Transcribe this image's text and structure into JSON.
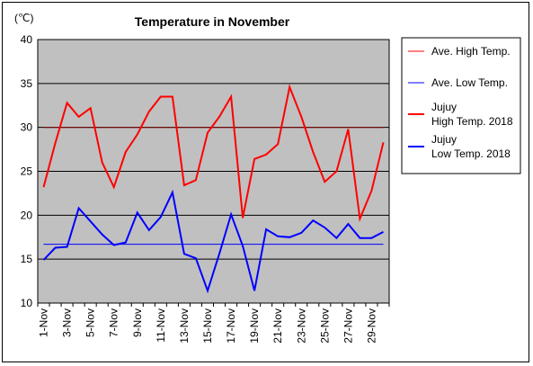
{
  "chart_data": {
    "type": "line",
    "title": "Temperature in November",
    "unit_label": "(℃)",
    "xlabel": "",
    "ylabel": "",
    "ylim": [
      10,
      40
    ],
    "yticks": [
      10,
      15,
      20,
      25,
      30,
      35,
      40
    ],
    "grid": true,
    "legend_position": "right",
    "plot_background": "#c0c0c0",
    "categories": [
      "1-Nov",
      "2-Nov",
      "3-Nov",
      "4-Nov",
      "5-Nov",
      "6-Nov",
      "7-Nov",
      "8-Nov",
      "9-Nov",
      "10-Nov",
      "11-Nov",
      "12-Nov",
      "13-Nov",
      "14-Nov",
      "15-Nov",
      "16-Nov",
      "17-Nov",
      "18-Nov",
      "19-Nov",
      "20-Nov",
      "21-Nov",
      "22-Nov",
      "23-Nov",
      "24-Nov",
      "25-Nov",
      "26-Nov",
      "27-Nov",
      "28-Nov",
      "29-Nov",
      "30-Nov"
    ],
    "tick_labels": [
      "1-Nov",
      "3-Nov",
      "5-Nov",
      "7-Nov",
      "9-Nov",
      "11-Nov",
      "13-Nov",
      "15-Nov",
      "17-Nov",
      "19-Nov",
      "21-Nov",
      "23-Nov",
      "25-Nov",
      "27-Nov",
      "29-Nov"
    ],
    "series": [
      {
        "name": "Ave. High Temp.",
        "color": "#ff0000",
        "line_color_on_plot": "#800000",
        "width": 1,
        "values": [
          30,
          30,
          30,
          30,
          30,
          30,
          30,
          30,
          30,
          30,
          30,
          30,
          30,
          30,
          30,
          30,
          30,
          30,
          30,
          30,
          30,
          30,
          30,
          30,
          30,
          30,
          30,
          30,
          30,
          30
        ]
      },
      {
        "name": "Ave. Low Temp.",
        "color": "#0000ff",
        "width": 1,
        "values": [
          16.7,
          16.7,
          16.7,
          16.7,
          16.7,
          16.7,
          16.7,
          16.7,
          16.7,
          16.7,
          16.7,
          16.7,
          16.7,
          16.7,
          16.7,
          16.7,
          16.7,
          16.7,
          16.7,
          16.7,
          16.7,
          16.7,
          16.7,
          16.7,
          16.7,
          16.7,
          16.7,
          16.7,
          16.7,
          16.7
        ]
      },
      {
        "name_lines": [
          "Jujuy",
          "High Temp. 2018"
        ],
        "color": "#ff0000",
        "width": 2,
        "values": [
          23.2,
          28.2,
          32.8,
          31.2,
          32.2,
          26.0,
          23.2,
          27.2,
          29.2,
          31.8,
          33.5,
          33.5,
          23.4,
          24.0,
          29.4,
          31.2,
          33.5,
          19.7,
          26.4,
          26.9,
          28.1,
          34.6,
          31.2,
          27.2,
          23.8,
          25.0,
          29.8,
          19.6,
          22.8,
          28.3
        ]
      },
      {
        "name_lines": [
          "Jujuy",
          "Low Temp. 2018"
        ],
        "color": "#0000ff",
        "width": 2,
        "values": [
          14.9,
          16.3,
          16.4,
          20.8,
          19.3,
          17.8,
          16.6,
          16.9,
          20.3,
          18.3,
          19.8,
          22.6,
          15.6,
          15.1,
          11.4,
          15.6,
          20.1,
          16.5,
          11.4,
          18.4,
          17.6,
          17.5,
          18.0,
          19.4,
          18.6,
          17.4,
          19.0,
          17.4,
          17.4,
          18.1
        ]
      }
    ]
  }
}
